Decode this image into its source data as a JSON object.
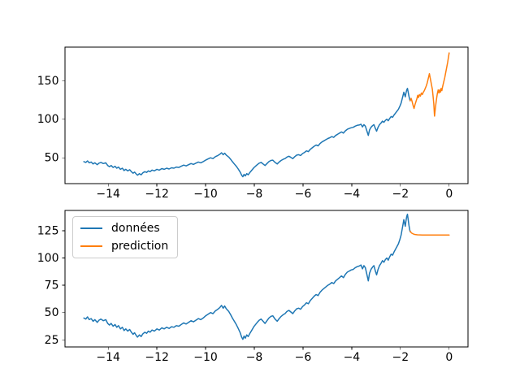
{
  "figure": {
    "background": "#ffffff"
  },
  "colors": {
    "axis": "#000000",
    "tick_label": "#000000",
    "data_line": "#1f77b4",
    "prediction_line": "#ff7f0e",
    "legend_border": "#cccccc",
    "legend_background": "rgba(255,255,255,0.8)"
  },
  "legend": {
    "position": "upper-left-of-bottom-panel",
    "items": [
      {
        "label": "données",
        "series": "donnees"
      },
      {
        "label": "prediction",
        "series": "prediction_bottom"
      }
    ]
  },
  "chart_data": {
    "type": "line",
    "title": "",
    "xlabel": "",
    "ylabel": "",
    "grid": false,
    "series_data": {
      "donnees": {
        "name": "données",
        "color": "#1f77b4",
        "points": [
          [
            -15,
            45
          ],
          [
            -14.92,
            44
          ],
          [
            -14.85,
            46
          ],
          [
            -14.78,
            43.5
          ],
          [
            -14.7,
            44.5
          ],
          [
            -14.62,
            42
          ],
          [
            -14.55,
            43.5
          ],
          [
            -14.45,
            41
          ],
          [
            -14.38,
            43
          ],
          [
            -14.3,
            44
          ],
          [
            -14.2,
            42.5
          ],
          [
            -14.1,
            43.5
          ],
          [
            -14.02,
            40
          ],
          [
            -13.95,
            38.5
          ],
          [
            -13.88,
            40
          ],
          [
            -13.8,
            37.5
          ],
          [
            -13.72,
            39
          ],
          [
            -13.65,
            36.5
          ],
          [
            -13.58,
            38
          ],
          [
            -13.5,
            35
          ],
          [
            -13.42,
            36.5
          ],
          [
            -13.35,
            33.5
          ],
          [
            -13.28,
            35
          ],
          [
            -13.2,
            33
          ],
          [
            -13.12,
            34.5
          ],
          [
            -13.05,
            32
          ],
          [
            -12.98,
            30
          ],
          [
            -12.92,
            31.5
          ],
          [
            -12.85,
            29
          ],
          [
            -12.8,
            27.5
          ],
          [
            -12.72,
            29.5
          ],
          [
            -12.65,
            28
          ],
          [
            -12.58,
            30.5
          ],
          [
            -12.5,
            32
          ],
          [
            -12.42,
            31
          ],
          [
            -12.35,
            33
          ],
          [
            -12.28,
            32
          ],
          [
            -12.2,
            34
          ],
          [
            -12.1,
            33
          ],
          [
            -12,
            35
          ],
          [
            -11.9,
            34
          ],
          [
            -11.8,
            36
          ],
          [
            -11.7,
            35
          ],
          [
            -11.6,
            36.5
          ],
          [
            -11.5,
            35.5
          ],
          [
            -11.4,
            37
          ],
          [
            -11.3,
            36.5
          ],
          [
            -11.2,
            38
          ],
          [
            -11.1,
            37.5
          ],
          [
            -11,
            39
          ],
          [
            -10.9,
            40.5
          ],
          [
            -10.8,
            39.5
          ],
          [
            -10.7,
            41
          ],
          [
            -10.6,
            42.5
          ],
          [
            -10.5,
            41.5
          ],
          [
            -10.4,
            43
          ],
          [
            -10.3,
            44.5
          ],
          [
            -10.2,
            43.5
          ],
          [
            -10.1,
            45
          ],
          [
            -10,
            47
          ],
          [
            -9.9,
            48.5
          ],
          [
            -9.8,
            50
          ],
          [
            -9.7,
            49
          ],
          [
            -9.6,
            51.5
          ],
          [
            -9.5,
            53
          ],
          [
            -9.42,
            54.5
          ],
          [
            -9.35,
            56.5
          ],
          [
            -9.28,
            54
          ],
          [
            -9.22,
            56
          ],
          [
            -9.15,
            53.5
          ],
          [
            -9.05,
            51
          ],
          [
            -8.97,
            48
          ],
          [
            -8.9,
            45
          ],
          [
            -8.82,
            42
          ],
          [
            -8.74,
            39
          ],
          [
            -8.66,
            35.5
          ],
          [
            -8.58,
            31.5
          ],
          [
            -8.52,
            27.5
          ],
          [
            -8.47,
            25.5
          ],
          [
            -8.42,
            28.5
          ],
          [
            -8.37,
            26.5
          ],
          [
            -8.31,
            29.5
          ],
          [
            -8.25,
            28
          ],
          [
            -8.18,
            31
          ],
          [
            -8.1,
            34
          ],
          [
            -8.02,
            37
          ],
          [
            -7.95,
            39
          ],
          [
            -7.88,
            41
          ],
          [
            -7.8,
            43
          ],
          [
            -7.72,
            44
          ],
          [
            -7.64,
            42
          ],
          [
            -7.56,
            40
          ],
          [
            -7.48,
            42.5
          ],
          [
            -7.4,
            45
          ],
          [
            -7.32,
            46.5
          ],
          [
            -7.24,
            47
          ],
          [
            -7.15,
            44
          ],
          [
            -7.06,
            42
          ],
          [
            -6.98,
            44.5
          ],
          [
            -6.9,
            46.5
          ],
          [
            -6.82,
            48
          ],
          [
            -6.74,
            49
          ],
          [
            -6.66,
            51
          ],
          [
            -6.58,
            52
          ],
          [
            -6.5,
            50.5
          ],
          [
            -6.42,
            49
          ],
          [
            -6.34,
            51.5
          ],
          [
            -6.26,
            53.5
          ],
          [
            -6.18,
            54
          ],
          [
            -6.1,
            53
          ],
          [
            -6.02,
            55.5
          ],
          [
            -5.94,
            57
          ],
          [
            -5.86,
            59
          ],
          [
            -5.78,
            58
          ],
          [
            -5.7,
            61
          ],
          [
            -5.62,
            63
          ],
          [
            -5.54,
            65
          ],
          [
            -5.46,
            66.5
          ],
          [
            -5.38,
            65.5
          ],
          [
            -5.3,
            68.5
          ],
          [
            -5.22,
            70.5
          ],
          [
            -5.14,
            72
          ],
          [
            -5.06,
            73.5
          ],
          [
            -4.98,
            75
          ],
          [
            -4.9,
            76
          ],
          [
            -4.82,
            77.5
          ],
          [
            -4.74,
            76.5
          ],
          [
            -4.66,
            79
          ],
          [
            -4.58,
            80.5
          ],
          [
            -4.5,
            82
          ],
          [
            -4.42,
            83.5
          ],
          [
            -4.34,
            82
          ],
          [
            -4.26,
            85
          ],
          [
            -4.18,
            87
          ],
          [
            -4.1,
            88
          ],
          [
            -4.02,
            89
          ],
          [
            -3.94,
            89.5
          ],
          [
            -3.86,
            91
          ],
          [
            -3.78,
            92
          ],
          [
            -3.7,
            92.5
          ],
          [
            -3.62,
            93.5
          ],
          [
            -3.56,
            90
          ],
          [
            -3.5,
            93
          ],
          [
            -3.44,
            91
          ],
          [
            -3.38,
            85
          ],
          [
            -3.32,
            79
          ],
          [
            -3.27,
            86
          ],
          [
            -3.21,
            89.5
          ],
          [
            -3.15,
            91.5
          ],
          [
            -3.09,
            93
          ],
          [
            -3.03,
            88
          ],
          [
            -2.98,
            84.5
          ],
          [
            -2.92,
            89.5
          ],
          [
            -2.86,
            93
          ],
          [
            -2.8,
            95
          ],
          [
            -2.74,
            97.5
          ],
          [
            -2.68,
            96
          ],
          [
            -2.62,
            98.5
          ],
          [
            -2.56,
            100
          ],
          [
            -2.5,
            98
          ],
          [
            -2.44,
            101
          ],
          [
            -2.38,
            103.5
          ],
          [
            -2.32,
            102.5
          ],
          [
            -2.26,
            105.5
          ],
          [
            -2.2,
            108
          ],
          [
            -2.14,
            110.5
          ],
          [
            -2.08,
            113
          ],
          [
            -2.02,
            117
          ],
          [
            -1.97,
            121
          ],
          [
            -1.93,
            126
          ],
          [
            -1.89,
            131
          ],
          [
            -1.86,
            135
          ],
          [
            -1.83,
            132
          ],
          [
            -1.8,
            129
          ],
          [
            -1.77,
            134
          ],
          [
            -1.74,
            138
          ],
          [
            -1.71,
            140
          ],
          [
            -1.68,
            135
          ],
          [
            -1.65,
            130
          ],
          [
            -1.62,
            126
          ],
          [
            -1.6,
            124
          ]
        ]
      },
      "prediction_top": {
        "name": "prediction",
        "color": "#ff7f0e",
        "points": [
          [
            -1.6,
            124
          ],
          [
            -1.56,
            127
          ],
          [
            -1.52,
            123
          ],
          [
            -1.48,
            118
          ],
          [
            -1.44,
            114
          ],
          [
            -1.4,
            119
          ],
          [
            -1.36,
            123
          ],
          [
            -1.32,
            127
          ],
          [
            -1.29,
            131
          ],
          [
            -1.26,
            128
          ],
          [
            -1.22,
            132
          ],
          [
            -1.18,
            130
          ],
          [
            -1.14,
            134
          ],
          [
            -1.1,
            132
          ],
          [
            -1.06,
            135
          ],
          [
            -1.02,
            137
          ],
          [
            -0.98,
            140
          ],
          [
            -0.94,
            143
          ],
          [
            -0.9,
            147
          ],
          [
            -0.87,
            151
          ],
          [
            -0.84,
            155
          ],
          [
            -0.81,
            159
          ],
          [
            -0.78,
            154
          ],
          [
            -0.75,
            149
          ],
          [
            -0.72,
            144
          ],
          [
            -0.69,
            139
          ],
          [
            -0.66,
            130
          ],
          [
            -0.63,
            120
          ],
          [
            -0.6,
            104
          ],
          [
            -0.57,
            113
          ],
          [
            -0.54,
            121
          ],
          [
            -0.51,
            128
          ],
          [
            -0.48,
            134
          ],
          [
            -0.45,
            138
          ],
          [
            -0.42,
            134
          ],
          [
            -0.39,
            138
          ],
          [
            -0.36,
            135
          ],
          [
            -0.33,
            140
          ],
          [
            -0.3,
            137
          ],
          [
            -0.27,
            142
          ],
          [
            -0.24,
            146
          ],
          [
            -0.21,
            150
          ],
          [
            -0.18,
            154
          ],
          [
            -0.15,
            159
          ],
          [
            -0.12,
            164
          ],
          [
            -0.09,
            169
          ],
          [
            -0.06,
            174
          ],
          [
            -0.03,
            180
          ],
          [
            0,
            186
          ]
        ]
      },
      "prediction_bottom": {
        "name": "prediction",
        "color": "#ff7f0e",
        "points": [
          [
            -1.6,
            124.5
          ],
          [
            -1.55,
            123
          ],
          [
            -1.5,
            122.3
          ],
          [
            -1.45,
            121.8
          ],
          [
            -1.4,
            121.5
          ],
          [
            -1.3,
            121.2
          ],
          [
            -1.2,
            121.1
          ],
          [
            -1.1,
            121
          ],
          [
            -1,
            121
          ],
          [
            -0.8,
            121
          ],
          [
            -0.6,
            121
          ],
          [
            -0.4,
            121
          ],
          [
            -0.2,
            121
          ],
          [
            0,
            121
          ]
        ]
      }
    },
    "panels": [
      {
        "name": "top",
        "xlim": [
          -15.775,
          0.775
        ],
        "ylim": [
          16.5,
          193.5
        ],
        "xticks": [
          -14,
          -12,
          -10,
          -8,
          -6,
          -4,
          -2,
          0
        ],
        "yticks": [
          50,
          100,
          150
        ],
        "series": [
          "donnees",
          "prediction_top"
        ],
        "has_legend": false
      },
      {
        "name": "bottom",
        "xlim": [
          -15.775,
          0.775
        ],
        "ylim": [
          18.5,
          143.5
        ],
        "xticks": [
          -14,
          -12,
          -10,
          -8,
          -6,
          -4,
          -2,
          0
        ],
        "yticks": [
          25,
          50,
          75,
          100,
          125
        ],
        "series": [
          "donnees",
          "prediction_bottom"
        ],
        "has_legend": true
      }
    ]
  }
}
